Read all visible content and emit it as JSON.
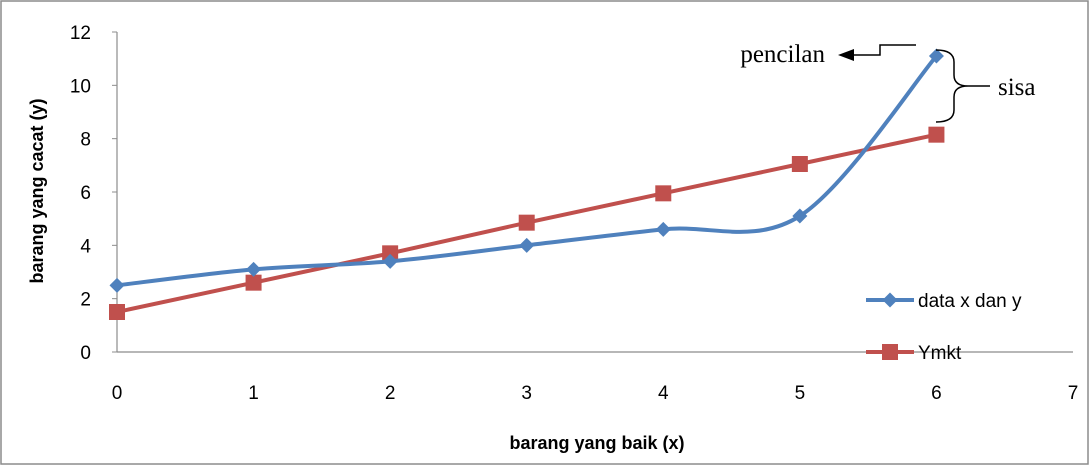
{
  "chart_data": {
    "type": "line",
    "x": [
      0,
      1,
      2,
      3,
      4,
      5,
      6
    ],
    "series": [
      {
        "name": "data x dan y",
        "values": [
          2.5,
          3.1,
          3.4,
          4.0,
          4.6,
          5.1,
          11.1
        ],
        "color": "#4f81bd",
        "marker": "diamond",
        "smooth": true
      },
      {
        "name": "Ymkt",
        "values": [
          1.5,
          2.6,
          3.7,
          4.85,
          5.95,
          7.05,
          8.15
        ],
        "color": "#c0504d",
        "marker": "square",
        "smooth": false
      }
    ],
    "xlabel": "barang yang baik (x)",
    "ylabel": "barang yang cacat (y)",
    "xlim": [
      0,
      7
    ],
    "ylim": [
      0,
      12
    ],
    "xticks": [
      "0",
      "1",
      "2",
      "3",
      "4",
      "5",
      "6",
      "7"
    ],
    "yticks": [
      "0",
      "2",
      "4",
      "6",
      "8",
      "10",
      "12"
    ],
    "grid": false,
    "legend_position": "right",
    "annotations": {
      "outlier_label": "pencilan",
      "residual_label": "sisa"
    }
  }
}
